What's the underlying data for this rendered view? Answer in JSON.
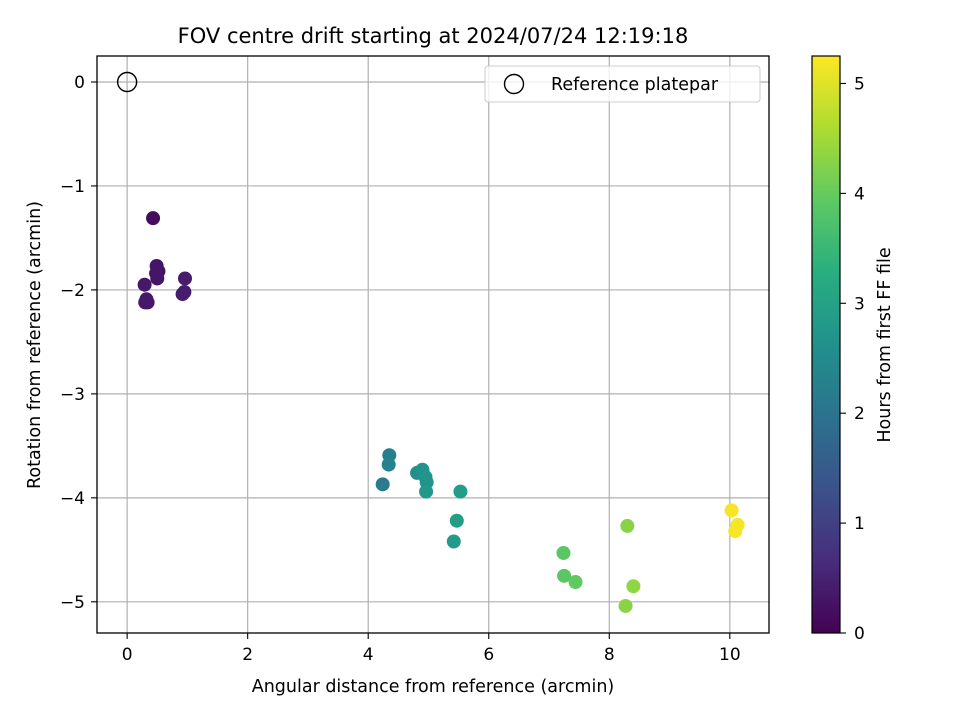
{
  "chart_data": {
    "type": "scatter",
    "title": "FOV centre drift starting at 2024/07/24 12:19:18",
    "xlabel": "Angular distance from reference (arcmin)",
    "ylabel": "Rotation from reference (arcmin)",
    "xlim": [
      -0.5,
      10.65
    ],
    "ylim": [
      -5.3,
      0.25
    ],
    "xticks": [
      0,
      2,
      4,
      6,
      8,
      10
    ],
    "yticks": [
      0,
      -1,
      -2,
      -3,
      -4,
      -5
    ],
    "grid": true,
    "legend": {
      "position": "upper right",
      "entries": [
        {
          "label": "Reference platepar",
          "marker": "open-circle"
        }
      ]
    },
    "reference_point": {
      "x": 0,
      "y": 0
    },
    "colorbar": {
      "label": "Hours from first FF file",
      "colormap": "viridis",
      "range": [
        0,
        5.25
      ],
      "ticks": [
        0,
        1,
        2,
        3,
        4,
        5
      ]
    },
    "points": [
      {
        "x": 0.43,
        "y": -1.31,
        "t": 0.15
      },
      {
        "x": 0.49,
        "y": -1.77,
        "t": 0.3
      },
      {
        "x": 0.52,
        "y": -1.82,
        "t": 0.3
      },
      {
        "x": 0.48,
        "y": -1.84,
        "t": 0.3
      },
      {
        "x": 0.5,
        "y": -1.89,
        "t": 0.3
      },
      {
        "x": 0.29,
        "y": -1.95,
        "t": 0.35
      },
      {
        "x": 0.32,
        "y": -2.09,
        "t": 0.35
      },
      {
        "x": 0.3,
        "y": -2.12,
        "t": 0.35
      },
      {
        "x": 0.34,
        "y": -2.12,
        "t": 0.35
      },
      {
        "x": 0.96,
        "y": -1.89,
        "t": 0.4
      },
      {
        "x": 0.95,
        "y": -2.02,
        "t": 0.4
      },
      {
        "x": 0.92,
        "y": -2.04,
        "t": 0.4
      },
      {
        "x": 4.35,
        "y": -3.59,
        "t": 2.25
      },
      {
        "x": 4.34,
        "y": -3.68,
        "t": 2.3
      },
      {
        "x": 4.24,
        "y": -3.87,
        "t": 2.15
      },
      {
        "x": 4.81,
        "y": -3.76,
        "t": 2.6
      },
      {
        "x": 4.9,
        "y": -3.73,
        "t": 2.65
      },
      {
        "x": 4.95,
        "y": -3.8,
        "t": 2.7
      },
      {
        "x": 4.97,
        "y": -3.85,
        "t": 2.7
      },
      {
        "x": 4.96,
        "y": -3.94,
        "t": 2.75
      },
      {
        "x": 5.53,
        "y": -3.94,
        "t": 2.9
      },
      {
        "x": 5.47,
        "y": -4.22,
        "t": 2.9
      },
      {
        "x": 5.42,
        "y": -4.42,
        "t": 2.85
      },
      {
        "x": 7.24,
        "y": -4.53,
        "t": 3.9
      },
      {
        "x": 7.25,
        "y": -4.75,
        "t": 3.9
      },
      {
        "x": 7.44,
        "y": -4.81,
        "t": 3.95
      },
      {
        "x": 8.3,
        "y": -4.27,
        "t": 4.3
      },
      {
        "x": 8.4,
        "y": -4.85,
        "t": 4.35
      },
      {
        "x": 8.27,
        "y": -5.04,
        "t": 4.3
      },
      {
        "x": 10.03,
        "y": -4.12,
        "t": 5.2
      },
      {
        "x": 10.13,
        "y": -4.26,
        "t": 5.2
      },
      {
        "x": 10.09,
        "y": -4.32,
        "t": 5.2
      }
    ]
  }
}
